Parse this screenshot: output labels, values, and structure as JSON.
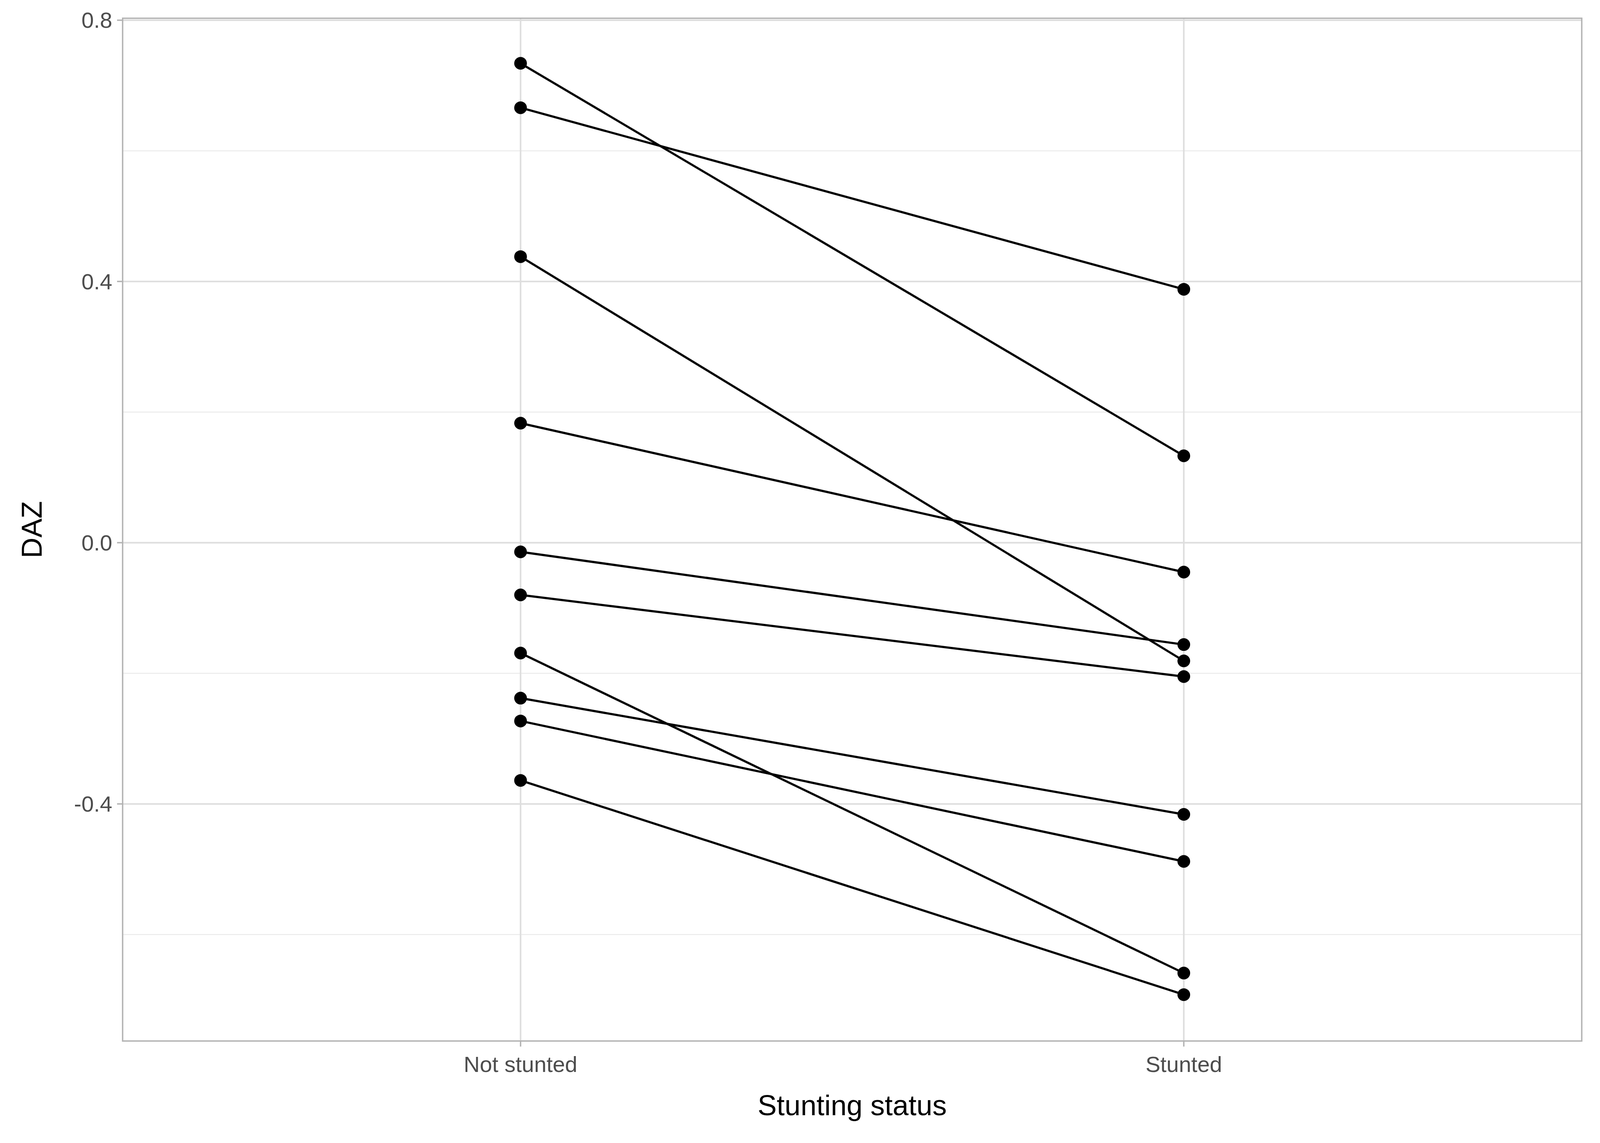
{
  "chart_data": {
    "type": "line",
    "x_label": "Stunting status",
    "y_label": "DAZ",
    "categories": [
      "Not stunted",
      "Stunted"
    ],
    "series": [
      {
        "color": "#000000",
        "marker": "circle",
        "values": [
          0.734,
          0.133
        ]
      },
      {
        "color": "#000000",
        "marker": "circle",
        "values": [
          0.666,
          0.388
        ]
      },
      {
        "color": "#000000",
        "marker": "circle",
        "values": [
          0.438,
          -0.181
        ]
      },
      {
        "color": "#000000",
        "marker": "circle",
        "values": [
          0.183,
          -0.045
        ]
      },
      {
        "color": "#000000",
        "marker": "circle",
        "values": [
          -0.014,
          -0.156
        ]
      },
      {
        "color": "#000000",
        "marker": "circle",
        "values": [
          -0.08,
          -0.205
        ]
      },
      {
        "color": "#000000",
        "marker": "circle",
        "values": [
          -0.169,
          -0.659
        ]
      },
      {
        "color": "#000000",
        "marker": "circle",
        "values": [
          -0.238,
          -0.416
        ]
      },
      {
        "color": "#000000",
        "marker": "circle",
        "values": [
          -0.273,
          -0.488
        ]
      },
      {
        "color": "#000000",
        "marker": "circle",
        "values": [
          -0.364,
          -0.692
        ]
      }
    ],
    "ylim": [
      -0.763,
      0.803
    ],
    "yticks": [
      -0.4,
      {
        "value": 0,
        "label": "0.0"
      },
      0.4,
      0.8
    ],
    "yticks_minor": [
      -0.6,
      -0.2,
      0.2,
      0.6
    ],
    "grid": true
  }
}
